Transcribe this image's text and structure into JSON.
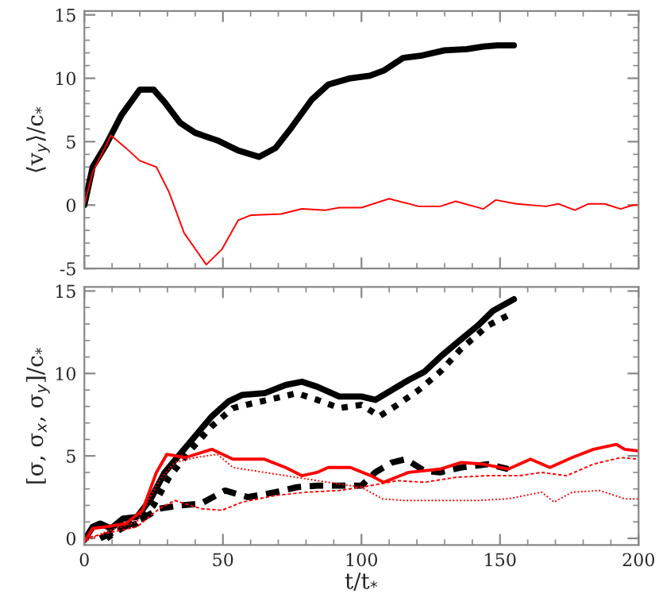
{
  "chart_data": [
    {
      "type": "line",
      "ylabel": "⟨v$_{y}$⟩/c$_{*}$",
      "xlim": [
        0,
        200
      ],
      "xticks": [
        0,
        50,
        100,
        150,
        200
      ],
      "ylim": [
        -5,
        15.3
      ],
      "yticks": [
        -5,
        0,
        5,
        10,
        15
      ],
      "tick_labels": "y",
      "grid": false,
      "legend": false,
      "series": [
        {
          "color": "#000000",
          "line_style": "solid",
          "x": [
            0,
            3,
            7.7,
            13.4,
            20,
            25,
            29,
            34.5,
            40,
            48,
            55.5,
            63,
            69,
            74.7,
            82,
            88,
            96,
            103,
            108,
            115,
            122,
            130,
            138,
            144,
            149,
            155
          ],
          "values": [
            0,
            3,
            4.7,
            7.1,
            9.1,
            9.1,
            8.1,
            6.5,
            5.7,
            5.1,
            4.3,
            3.8,
            4.5,
            6.1,
            8.3,
            9.5,
            10.0,
            10.2,
            10.6,
            11.6,
            11.8,
            12.2,
            12.3,
            12.5,
            12.6,
            12.6
          ]
        },
        {
          "color": "#ff0000",
          "line_style": "solid",
          "x": [
            0,
            3,
            9.6,
            15,
            20,
            26,
            30.6,
            36,
            44,
            49.6,
            55.5,
            60,
            71,
            78.5,
            87,
            92,
            100,
            110,
            120.7,
            128.4,
            134,
            144,
            148.5,
            156,
            166.6,
            171,
            177,
            182,
            187.7,
            193.5,
            198,
            200
          ],
          "values": [
            0,
            2.6,
            5.5,
            4.5,
            3.5,
            3.0,
            1.0,
            -2.2,
            -4.7,
            -3.5,
            -1.2,
            -0.8,
            -0.7,
            -0.3,
            -0.4,
            -0.2,
            -0.2,
            0.5,
            -0.1,
            -0.1,
            0.3,
            -0.3,
            0.4,
            0.1,
            -0.1,
            0.1,
            -0.4,
            0.1,
            0.1,
            -0.3,
            0,
            0
          ]
        }
      ]
    },
    {
      "type": "line",
      "xlabel": "t/t$_{*}$",
      "ylabel": "[σ, σ$_{x}$, σ$_{y}$]/c$_{*}$",
      "xlim": [
        0,
        200
      ],
      "xticks": [
        0,
        50,
        100,
        150,
        200
      ],
      "ylim": [
        -0.4,
        15.25
      ],
      "yticks": [
        0,
        5,
        10,
        15
      ],
      "grid": false,
      "legend": false,
      "series": [
        {
          "color": "#000000",
          "line_style": "solid",
          "x": [
            0,
            3,
            5.7,
            9.6,
            14,
            19,
            24,
            29,
            34.5,
            40,
            46,
            52,
            57,
            65,
            72.6,
            78.5,
            84,
            92,
            100,
            105,
            111,
            117,
            122.7,
            128.4,
            134,
            142,
            147.5,
            155
          ],
          "values": [
            -0.1,
            0.7,
            0.9,
            0.6,
            1.2,
            1.3,
            2.4,
            4.0,
            5.1,
            6.2,
            7.4,
            8.3,
            8.7,
            8.8,
            9.3,
            9.5,
            9.2,
            8.6,
            8.6,
            8.4,
            9.0,
            9.6,
            10.1,
            11.0,
            11.8,
            12.9,
            13.8,
            14.5
          ]
        },
        {
          "color": "#000000",
          "line_style": "dotted",
          "x": [
            8,
            13.4,
            19,
            25,
            30.6,
            38,
            46,
            53.6,
            61,
            69,
            76.6,
            84,
            92,
            100,
            106.5,
            113,
            120.7,
            128.4,
            136,
            145.6,
            155
          ],
          "values": [
            0,
            0.6,
            0.9,
            2.0,
            3.7,
            5.3,
            6.8,
            7.9,
            8.2,
            8.5,
            8.8,
            8.4,
            7.9,
            8.1,
            7.4,
            8.1,
            9.0,
            10.1,
            11.5,
            12.9,
            13.7
          ]
        },
        {
          "color": "#000000",
          "line_style": "dashed",
          "x": [
            5.7,
            13.4,
            21,
            27,
            34.5,
            42,
            50.8,
            59,
            69,
            76.6,
            84,
            92,
            100,
            105,
            111,
            116,
            122.7,
            128.4,
            136,
            145.6,
            153
          ],
          "values": [
            0,
            0.6,
            1.2,
            1.8,
            2.0,
            2.1,
            2.9,
            2.5,
            2.8,
            3.1,
            3.2,
            3.2,
            3.2,
            4.0,
            4.6,
            4.8,
            4.1,
            4.0,
            4.3,
            4.5,
            4.2
          ]
        },
        {
          "color": "#ff0000",
          "line_style": "solid",
          "x": [
            0,
            3,
            7.7,
            15,
            21,
            26,
            29.8,
            36.4,
            46,
            53.6,
            65,
            72.6,
            78.5,
            84,
            88,
            96,
            103.4,
            108,
            117,
            128.4,
            136,
            144,
            153,
            161,
            168,
            176,
            183.7,
            192,
            195,
            200
          ],
          "values": [
            -0.2,
            0.6,
            0.7,
            0.9,
            1.7,
            4.0,
            5.1,
            4.9,
            5.4,
            4.8,
            4.8,
            4.3,
            3.8,
            4.0,
            4.3,
            4.3,
            3.8,
            3.4,
            4.0,
            4.2,
            4.6,
            4.5,
            4.2,
            4.8,
            4.3,
            4.9,
            5.4,
            5.7,
            5.4,
            5.3
          ]
        },
        {
          "color": "#ff0000",
          "line_style": "dotted",
          "x": [
            0,
            7.7,
            19,
            27,
            32.6,
            40,
            48,
            53.6,
            65,
            76.6,
            88,
            100,
            107.5,
            115,
            126.4,
            142,
            153,
            165,
            169.5,
            176,
            186,
            195,
            200
          ],
          "values": [
            -0.2,
            0.4,
            1.0,
            3.5,
            4.6,
            4.9,
            5.1,
            4.3,
            4.0,
            3.7,
            3.4,
            3.1,
            2.4,
            2.3,
            2.3,
            2.3,
            2.4,
            2.8,
            2.2,
            2.8,
            2.9,
            2.4,
            2.4
          ]
        },
        {
          "color": "#ff0000",
          "line_style": "dashed",
          "x": [
            0,
            7.7,
            19,
            27,
            32.6,
            42,
            49.6,
            57,
            69,
            80,
            92,
            103.4,
            113,
            122.7,
            134,
            145.6,
            157,
            165,
            174,
            183.7,
            193.5,
            200
          ],
          "values": [
            0,
            0.3,
            0.7,
            1.8,
            2.3,
            1.8,
            1.7,
            2.2,
            2.6,
            2.8,
            2.9,
            3.2,
            3.5,
            3.4,
            3.7,
            3.8,
            3.8,
            4.0,
            3.8,
            4.5,
            4.9,
            4.8
          ]
        }
      ]
    }
  ]
}
